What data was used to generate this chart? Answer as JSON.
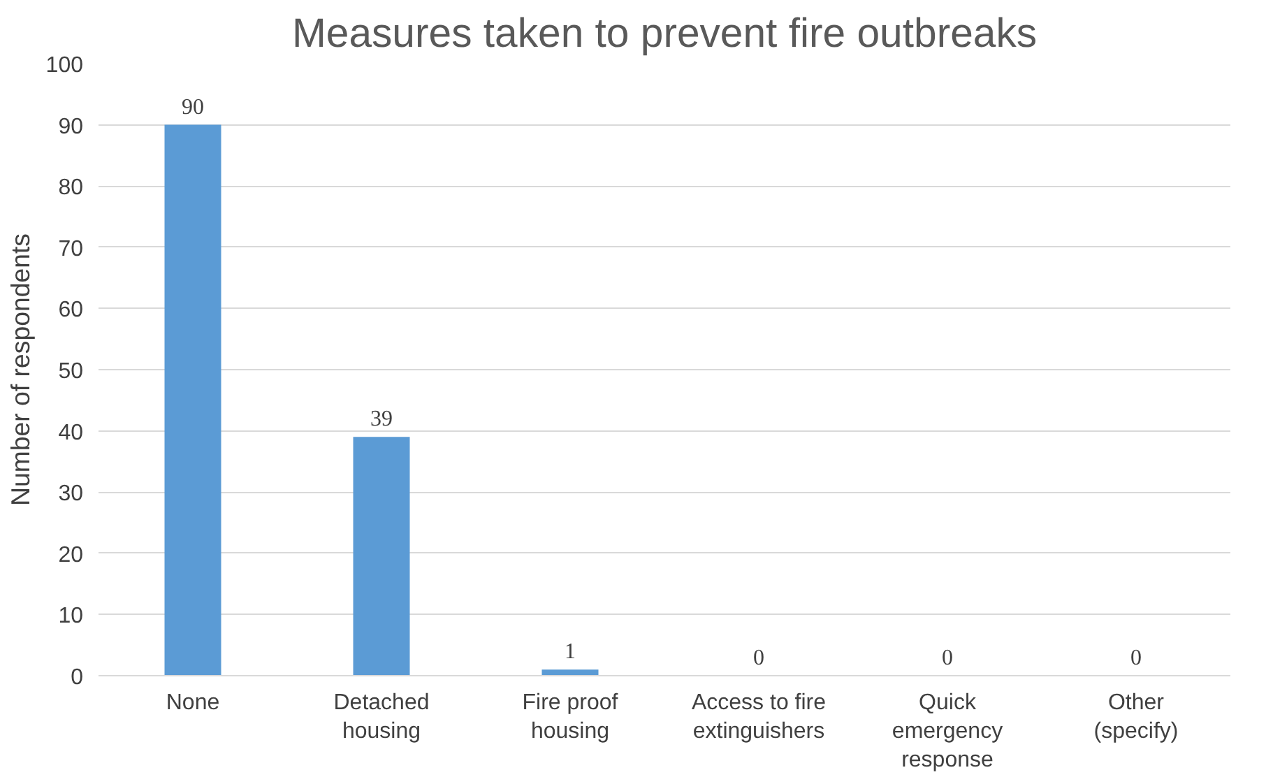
{
  "chart_data": {
    "type": "bar",
    "title": "Measures taken to prevent fire outbreaks",
    "ylabel": "Number of respondents",
    "categories": [
      "None",
      "Detached housing",
      "Fire proof housing",
      "Access to fire extinguishers",
      "Quick emergency response",
      "Other (specify)"
    ],
    "values": [
      90,
      39,
      1,
      0,
      0,
      0
    ],
    "color": "#5b9bd5",
    "ylim": [
      0,
      100
    ],
    "yticks": [
      0,
      10,
      20,
      30,
      40,
      50,
      60,
      70,
      80,
      90,
      100
    ],
    "grid": "y",
    "data_labels": true
  }
}
